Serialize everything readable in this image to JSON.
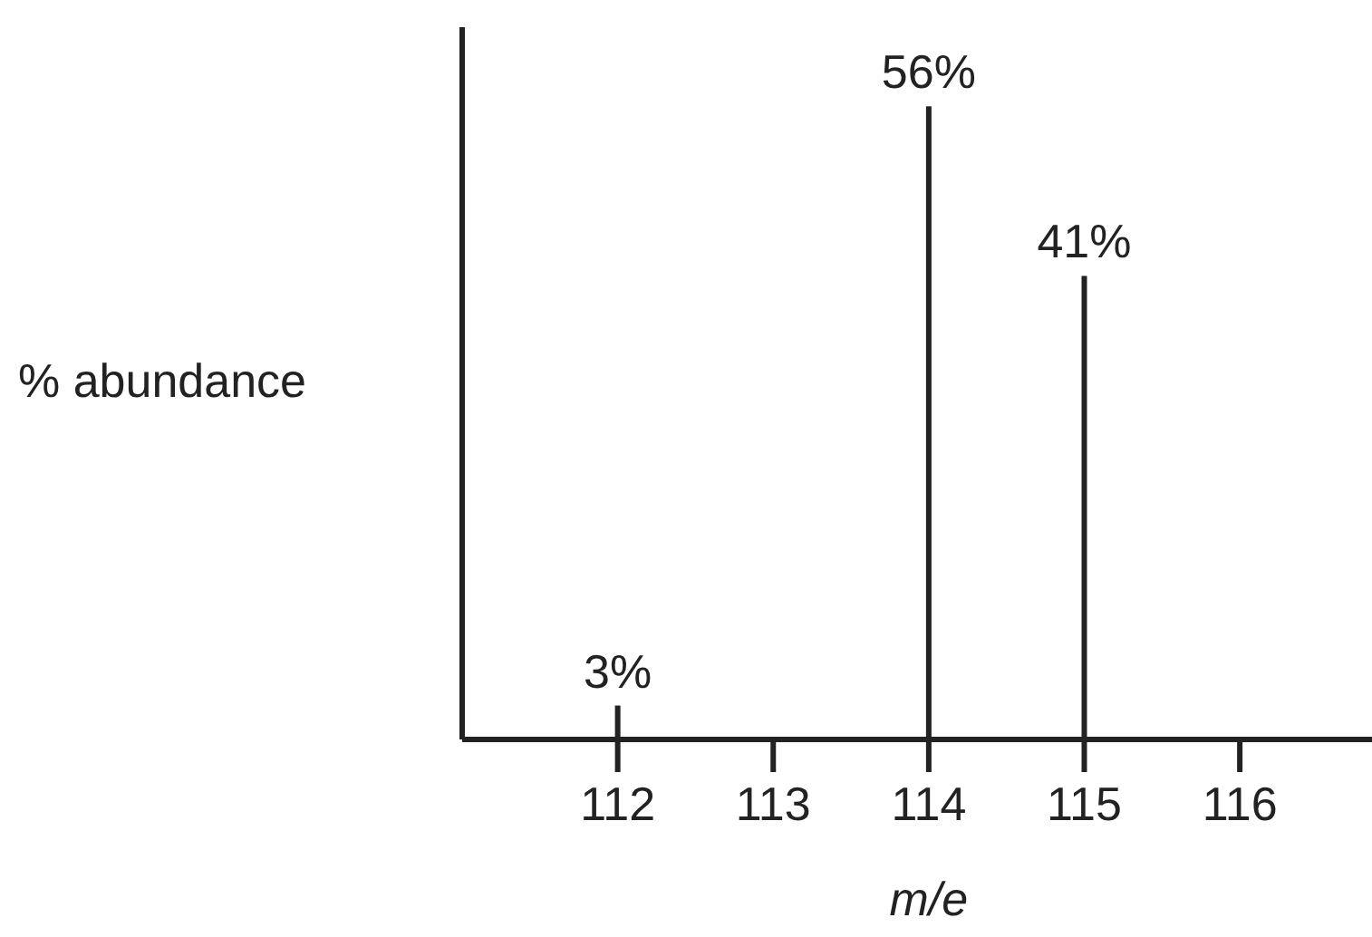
{
  "chart_data": {
    "type": "bar",
    "xlabel": "m/e",
    "ylabel": "% abundance",
    "x": [
      112,
      114,
      115
    ],
    "values": [
      3,
      56,
      41
    ],
    "value_labels": [
      "3%",
      "56%",
      "41%"
    ],
    "color": "#222222",
    "xlim": [
      111,
      116.85
    ],
    "xticks": [
      112,
      113,
      114,
      115,
      116
    ],
    "ylim": [
      0,
      63
    ],
    "tick_labels": "x",
    "grid": false
  }
}
